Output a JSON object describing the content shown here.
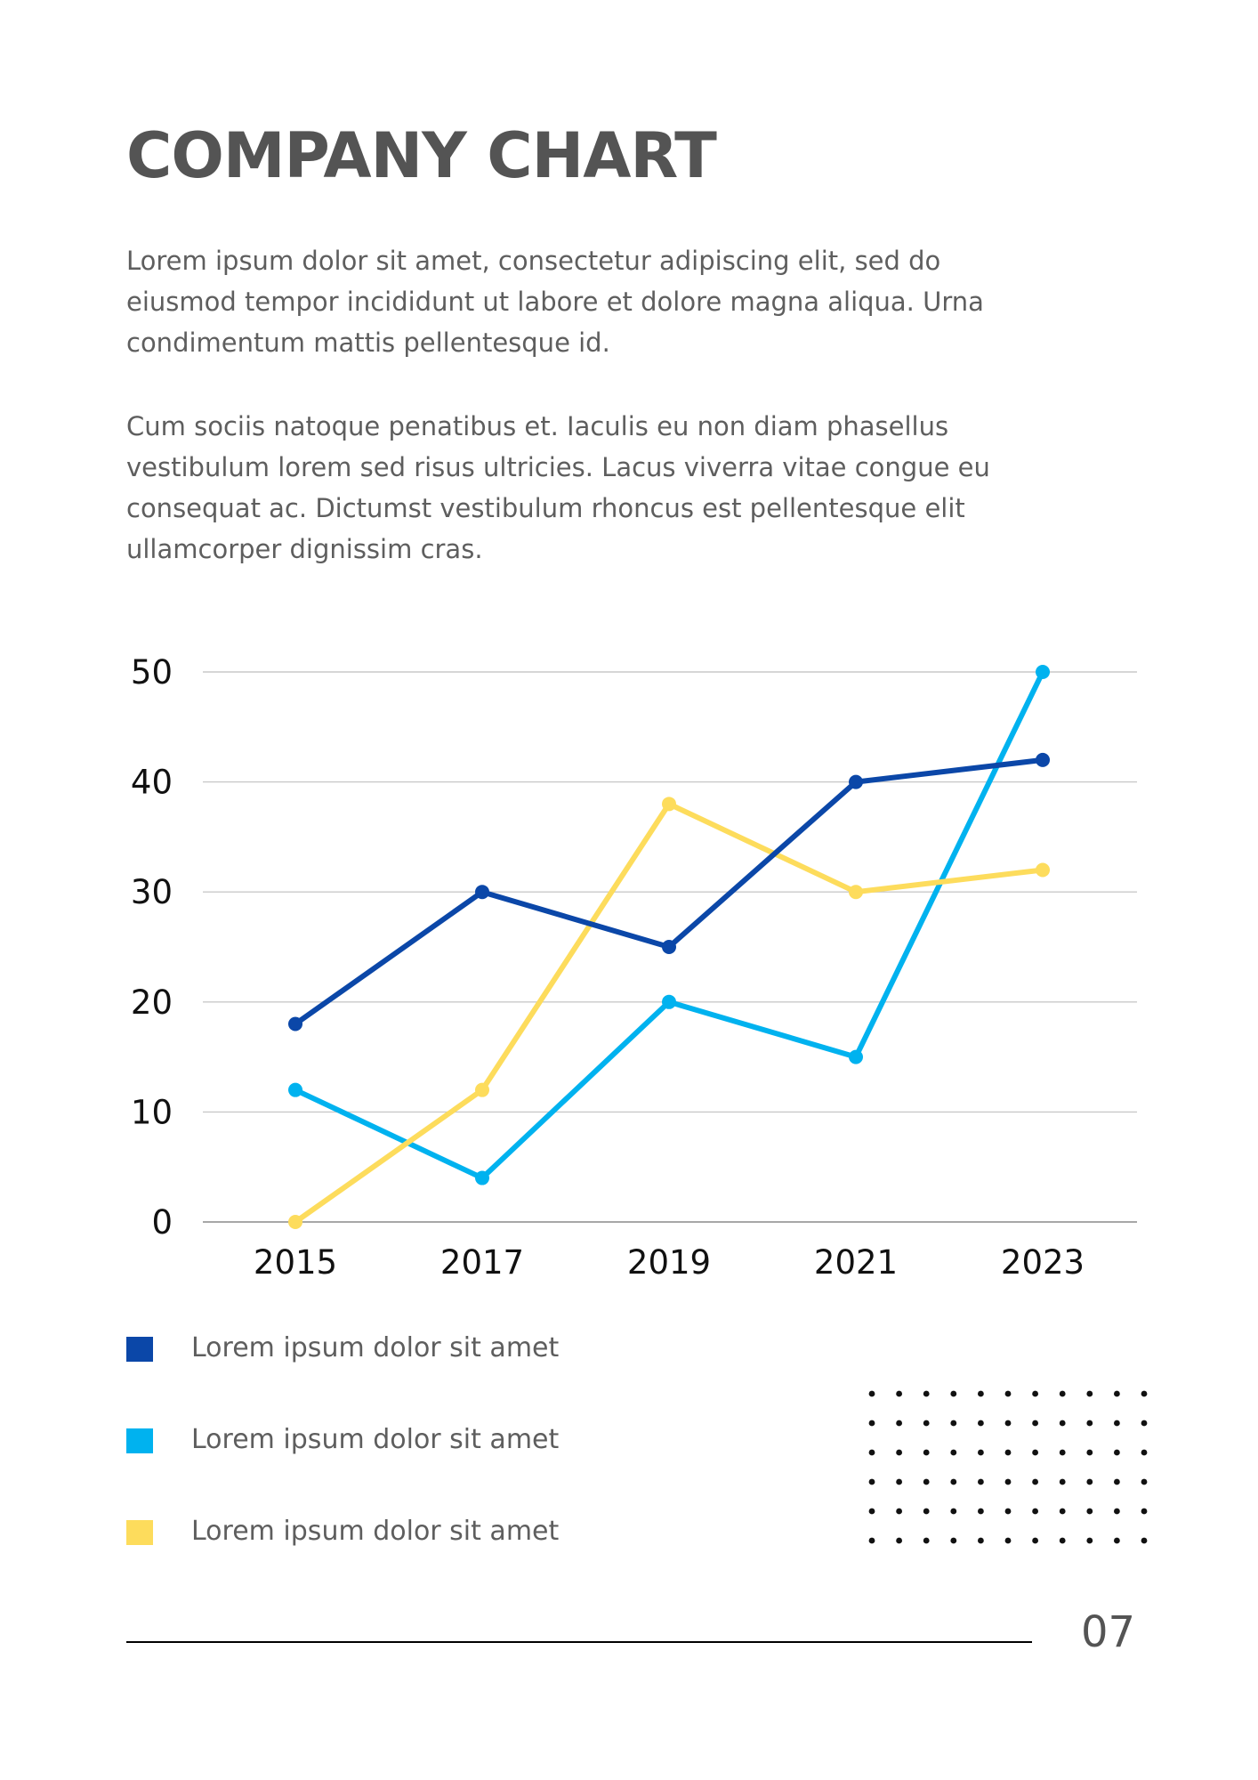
{
  "page": {
    "title": "COMPANY CHART",
    "paragraphs": [
      "Lorem ipsum dolor sit amet, consectetur adipiscing elit, sed do eiusmod tempor incididunt ut labore et dolore magna aliqua. Urna condimentum mattis pellentesque id.",
      "Cum sociis natoque penatibus et. Iaculis eu non diam phasellus vestibulum lorem sed risus ultricies. Lacus viverra vitae congue eu consequat ac. Dictumst vestibulum rhoncus est pellentesque elit ullamcorper dignissim cras."
    ],
    "page_number": "07"
  },
  "chart_data": {
    "type": "line",
    "x": [
      "2015",
      "2017",
      "2019",
      "2021",
      "2023"
    ],
    "series": [
      {
        "name": "Lorem ipsum dolor sit amet",
        "color": "#0b47a8",
        "values": [
          18,
          30,
          25,
          40,
          42
        ]
      },
      {
        "name": "Lorem ipsum dolor sit amet",
        "color": "#00b2ef",
        "values": [
          12,
          4,
          20,
          15,
          50
        ]
      },
      {
        "name": "Lorem ipsum dolor sit amet",
        "color": "#fddc5c",
        "values": [
          0,
          12,
          38,
          30,
          32
        ]
      }
    ],
    "ylim": [
      0,
      50
    ],
    "yticks": [
      0,
      10,
      20,
      30,
      40,
      50
    ],
    "grid": true,
    "legend_position": "bottom-left",
    "title": "",
    "xlabel": "",
    "ylabel": ""
  }
}
